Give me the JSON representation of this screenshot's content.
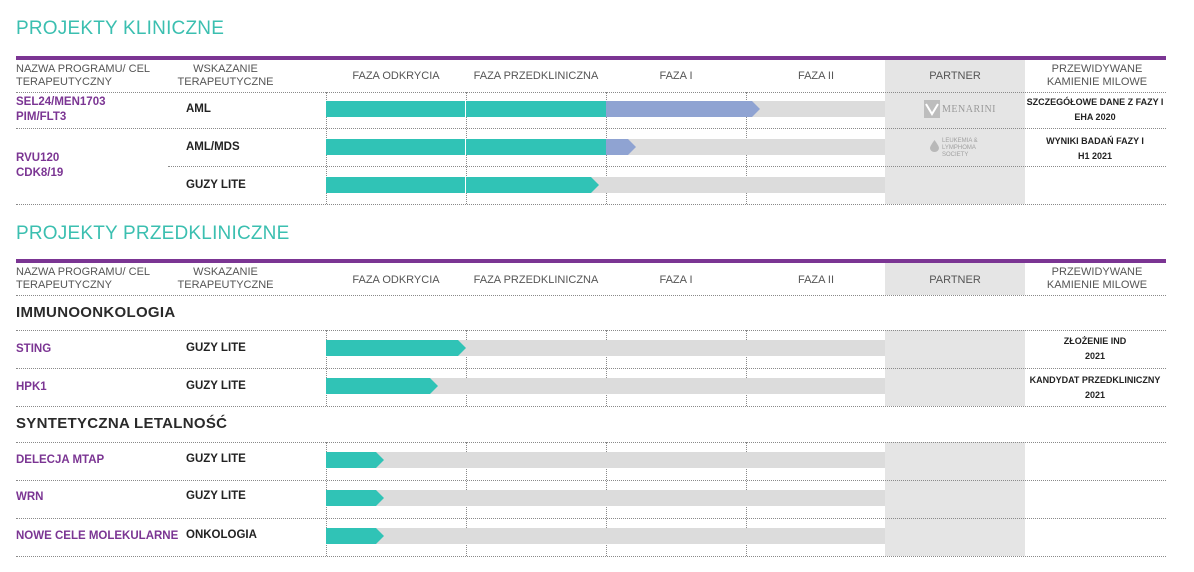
{
  "clinical": {
    "title": "PROJEKTY KLINICZNE",
    "headers": {
      "program": "NAZWA PROGRAMU/ CEL TERAPEUTYCZNY",
      "indication": "WSKAZANIE TERAPEUTYCZNE",
      "discovery": "FAZA ODKRYCIA",
      "preclinical": "FAZA PRZEDKLINICZNA",
      "phase1": "FAZA I",
      "phase2": "FAZA II",
      "partner": "PARTNER",
      "milestones": "PRZEWIDYWANE KAMIENIE MILOWE"
    },
    "programs": [
      {
        "name_line1": "SEL24/MEN1703",
        "name_line2": "PIM/FLT3"
      },
      {
        "name_line1": "RVU120",
        "name_line2": "CDK8/19"
      }
    ],
    "rows": [
      {
        "indication": "AML",
        "progress_teal": 0.5,
        "progress_blue": 0.55,
        "milestone_line1": "SZCZEGÓŁOWE DANE Z FAZY I",
        "milestone_line2": "EHA 2020"
      },
      {
        "indication": "AML/MDS",
        "progress_teal": 0.5,
        "progress_blue": 0.1,
        "milestone_line1": "WYNIKI BADAŃ FAZY I",
        "milestone_line2": "H1 2021"
      },
      {
        "indication": "GUZY LITE",
        "progress_teal": 0.48,
        "progress_blue": 0,
        "milestone_line1": "",
        "milestone_line2": ""
      }
    ],
    "partners": {
      "menarini": "MENARINI",
      "lls_line1": "LEUKEMIA &",
      "lls_line2": "LYMPHOMA",
      "lls_line3": "SOCIETY"
    }
  },
  "preclinical": {
    "title": "PROJEKTY PRZEDKLINICZNE",
    "headers": {
      "program": "NAZWA PROGRAMU/ CEL TERAPEUTYCZNY",
      "indication": "WSKAZANIE TERAPEUTYCZNE",
      "discovery": "FAZA ODKRYCIA",
      "preclinical": "FAZA PRZEDKLINICZNA",
      "phase1": "FAZA I",
      "phase2": "FAZA II",
      "partner": "PARTNER",
      "milestones": "PRZEWIDYWANE KAMIENIE MILOWE"
    },
    "groups": [
      {
        "title": "IMMUNOONKOLOGIA",
        "rows": [
          {
            "program": "STING",
            "indication": "GUZY LITE",
            "progress": 0.25,
            "milestone_line1": "ZŁOŻENIE IND",
            "milestone_line2": "2021"
          },
          {
            "program": "HPK1",
            "indication": "GUZY LITE",
            "progress": 0.2,
            "milestone_line1": "KANDYDAT PRZEDKLINICZNY",
            "milestone_line2": "2021"
          }
        ]
      },
      {
        "title": "SYNTETYCZNA LETALNOŚĆ",
        "rows": [
          {
            "program": "DELECJA MTAP",
            "indication": "GUZY LITE",
            "progress": 0.1
          },
          {
            "program": "WRN",
            "indication": "GUZY LITE",
            "progress": 0.1
          },
          {
            "program": "NOWE CELE MOLEKULARNE",
            "indication": "ONKOLOGIA",
            "progress": 0.1
          }
        ]
      }
    ]
  },
  "colors": {
    "teal": "#30c3b6",
    "blue": "#8fa3d2",
    "purple": "#7b3593",
    "title_teal": "#3bbfb0",
    "track_gray": "#dcdcdc",
    "partner_gray": "#e5e5e5"
  }
}
